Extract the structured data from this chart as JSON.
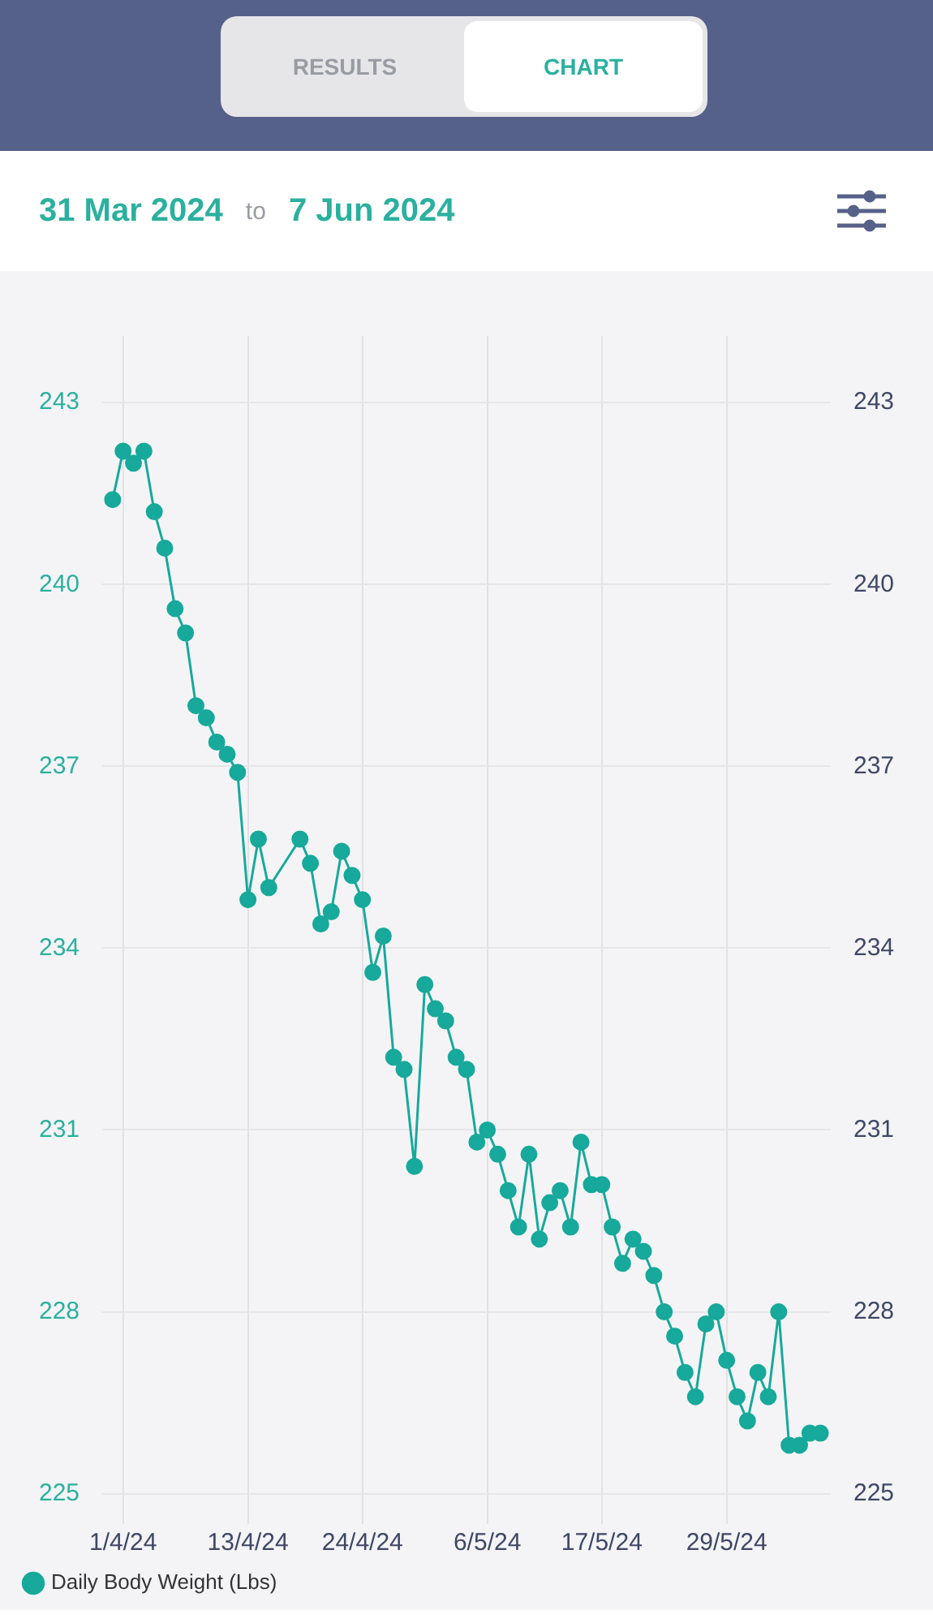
{
  "chart_data": {
    "type": "line",
    "annotations": [
      "RESULTS",
      "CHART",
      "31 Mar 2024",
      "to",
      "7 Jun 2024"
    ],
    "x": [
      "2024-03-31",
      "2024-04-01",
      "2024-04-02",
      "2024-04-03",
      "2024-04-04",
      "2024-04-05",
      "2024-04-06",
      "2024-04-07",
      "2024-04-08",
      "2024-04-09",
      "2024-04-10",
      "2024-04-11",
      "2024-04-12",
      "2024-04-13",
      "2024-04-14",
      "2024-04-15",
      "2024-04-18",
      "2024-04-19",
      "2024-04-20",
      "2024-04-21",
      "2024-04-22",
      "2024-04-23",
      "2024-04-24",
      "2024-04-25",
      "2024-04-26",
      "2024-04-27",
      "2024-04-28",
      "2024-04-29",
      "2024-04-30",
      "2024-05-01",
      "2024-05-02",
      "2024-05-03",
      "2024-05-04",
      "2024-05-05",
      "2024-05-06",
      "2024-05-07",
      "2024-05-08",
      "2024-05-09",
      "2024-05-10",
      "2024-05-11",
      "2024-05-12",
      "2024-05-13",
      "2024-05-14",
      "2024-05-15",
      "2024-05-16",
      "2024-05-17",
      "2024-05-18",
      "2024-05-19",
      "2024-05-20",
      "2024-05-21",
      "2024-05-22",
      "2024-05-23",
      "2024-05-24",
      "2024-05-25",
      "2024-05-26",
      "2024-05-27",
      "2024-05-28",
      "2024-05-29",
      "2024-05-30",
      "2024-05-31",
      "2024-06-01",
      "2024-06-02",
      "2024-06-03",
      "2024-06-04",
      "2024-06-05",
      "2024-06-06",
      "2024-06-07"
    ],
    "series": [
      {
        "name": "Daily Body Weight (Lbs)",
        "color": "#17a99b",
        "values": [
          241.4,
          242.2,
          242.0,
          242.2,
          241.2,
          240.6,
          239.6,
          239.2,
          238.0,
          237.8,
          237.4,
          237.2,
          236.9,
          234.8,
          235.8,
          235.0,
          235.8,
          235.4,
          234.4,
          234.6,
          235.6,
          235.2,
          234.8,
          233.6,
          234.2,
          232.2,
          232.0,
          230.4,
          233.4,
          233.0,
          232.8,
          232.2,
          232.0,
          230.8,
          231.0,
          230.6,
          230.0,
          229.4,
          230.6,
          229.2,
          229.8,
          230.0,
          229.4,
          230.8,
          230.1,
          230.1,
          229.4,
          228.8,
          229.2,
          229.0,
          228.6,
          228.0,
          227.6,
          227.0,
          226.6,
          227.8,
          228.0,
          227.2,
          226.6,
          226.2,
          227.0,
          226.6,
          228.0,
          225.8,
          225.8,
          226.0,
          226.0
        ]
      }
    ],
    "xlim": [
      "2024-03-30",
      "2024-06-08"
    ],
    "xticks": [
      {
        "value": "2024-04-01",
        "label": "1/4/24"
      },
      {
        "value": "2024-04-13",
        "label": "13/4/24"
      },
      {
        "value": "2024-04-24",
        "label": "24/4/24"
      },
      {
        "value": "2024-05-06",
        "label": "6/5/24"
      },
      {
        "value": "2024-05-17",
        "label": "17/5/24"
      },
      {
        "value": "2024-05-29",
        "label": "29/5/24"
      }
    ],
    "ylim": [
      224.5,
      244.1
    ],
    "yticks": [
      225,
      228,
      231,
      234,
      237,
      240,
      243
    ],
    "y2lim": [
      224.5,
      244.1
    ],
    "y2ticks": [
      225,
      228,
      231,
      234,
      237,
      240,
      243
    ],
    "grid": true,
    "legend": "bottom left",
    "marker": "circle",
    "line_style": "solid"
  }
}
